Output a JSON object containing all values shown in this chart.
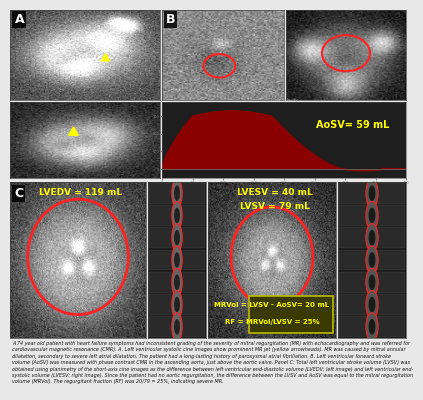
{
  "panel_A_label": "A",
  "panel_B_label": "B",
  "panel_C_label": "C",
  "aosv_text": "AoSV= 59 mL",
  "lvedv_text": "LVEDV = 119 mL",
  "lvesv_text": "LVESV = 40 mL",
  "lvsv_text": "LVSV = 79 mL",
  "mrvol_text": "MRVol = LVSV - AoSV= 20 mL",
  "rf_text": "RF = MRVol/LVSV = 25%",
  "caption": "A 74 year old patient with heart failure symptoms had inconsistent grading of the severity of mitral regurgitation (MR) with echocardiography and was referred for cardiovascular magnetic resonance (CMR). A. Left ventricular systolic cine images show prominent MR jet (yellow arrowheads). MR was caused by mitral annular dilatation, secondary to severe left atrial dilatation. The patient had a long-lasting history of paroxysmal atrial fibrillation. B. Left ventricular forward stroke volume (AoSV) was measured with phase contrast CMR in the ascending aorta, just above the aortic valve. Panel C: Total left ventricular stroke volume (LVSV) was obtained using planimetry of the short-axis cine images as the difference between left ventricular end-diastolic volume (LVEDV; left image) and left ventricular end-systolic volume (LVESV; right image). Since the patient had no aortic regurgitation, the difference between the LVSV and AoSV was equal to the mitral regurgitation volume (MRVol). The regurgitant fraction (RF) was 20/79 = 25%, indicating severe MR.",
  "bg_color": "#e8e8e8",
  "panel_bg_dark": "#111111",
  "panel_bg_mid": "#222222",
  "flow_bg": "#1e1e1e",
  "flow_curve_color": "#8b0000",
  "arrow_color": "#ffff00",
  "text_yellow": "#ffff00",
  "circle_color": "#ff2222",
  "box_fill": "#3a3a00",
  "box_edge": "#bbbb00",
  "label_bg": "#111111",
  "white_label_fontsize": 9,
  "aosv_fontsize": 7,
  "meas_fontsize": 6.5,
  "caption_fontsize": 3.5,
  "border_color": "#888888"
}
